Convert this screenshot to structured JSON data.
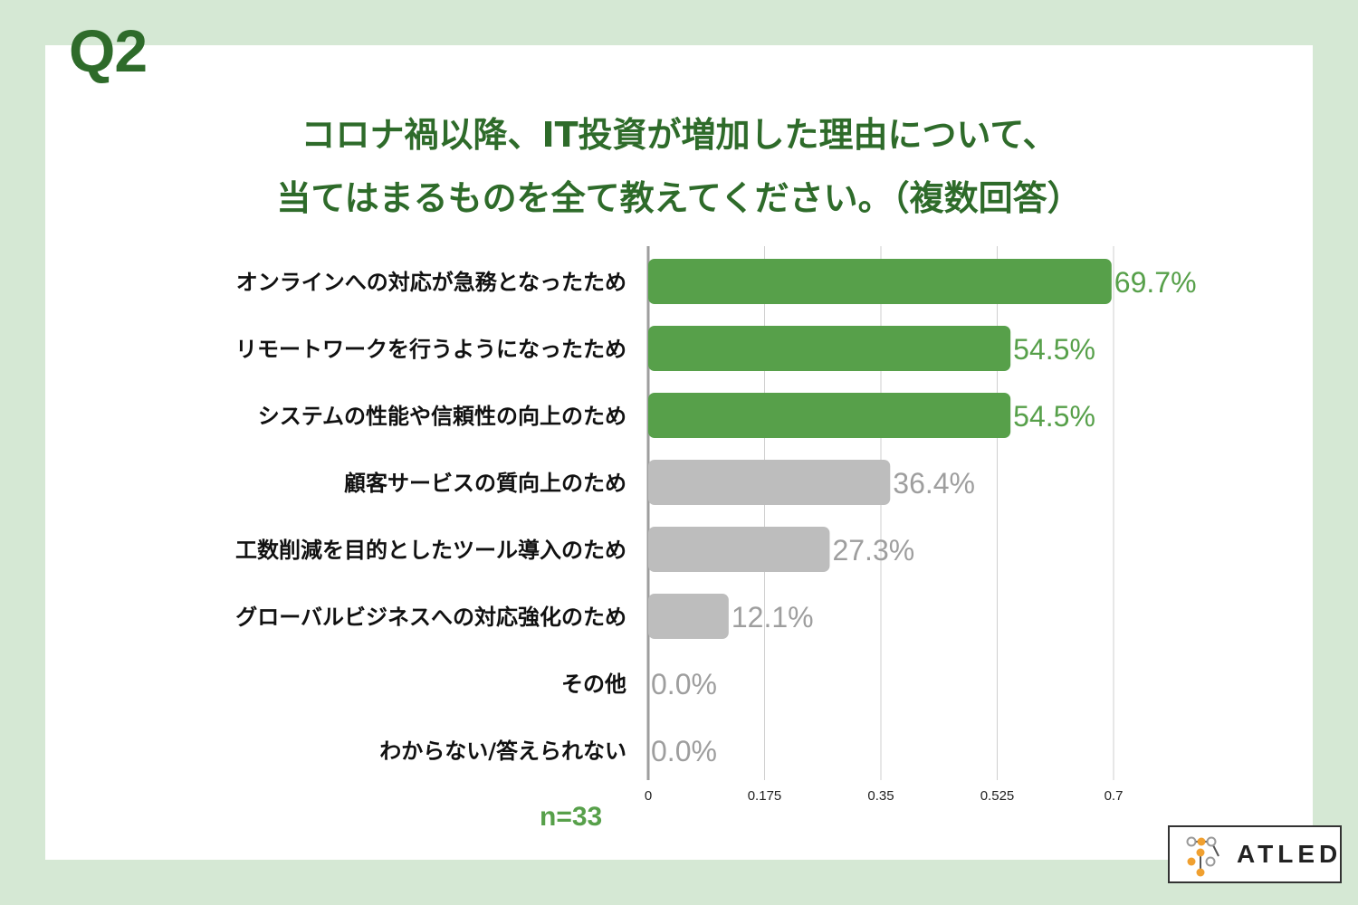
{
  "question_label": "Q2",
  "title_line1": "コロナ禍以降、IT投資が増加した理由について、",
  "title_line2": "当てはまるものを全て教えてください。（複数回答）",
  "sample_note": "n=33",
  "logo_text": "ATLED",
  "colors": {
    "background": "#d5e8d4",
    "title": "#2e6b2a",
    "highlight_bar": "#57a04a",
    "other_bar": "#bdbdbd",
    "highlight_value": "#57a04a",
    "other_value": "#9e9e9e",
    "logo_orange": "#f0a030",
    "logo_gray": "#9a9a9a"
  },
  "chart_data": {
    "type": "bar",
    "orientation": "horizontal",
    "categories": [
      "オンラインへの対応が急務となったため",
      "リモートワークを行うようになったため",
      "システムの性能や信頼性の向上のため",
      "顧客サービスの質向上のため",
      "工数削減を目的としたツール導入のため",
      "グローバルビジネスへの対応強化のため",
      "その他",
      "わからない/答えられない"
    ],
    "values": [
      0.697,
      0.545,
      0.545,
      0.364,
      0.273,
      0.121,
      0.0,
      0.0
    ],
    "value_labels": [
      "69.7%",
      "54.5%",
      "54.5%",
      "36.4%",
      "27.3%",
      "12.1%",
      "0.0%",
      "0.0%"
    ],
    "highlighted": [
      true,
      true,
      true,
      false,
      false,
      false,
      false,
      false
    ],
    "x_ticks": [
      0,
      0.175,
      0.35,
      0.525,
      0.7
    ],
    "x_tick_labels": [
      "0",
      "0.175",
      "0.35",
      "0.525",
      "0.7"
    ],
    "xlim": [
      0,
      0.7
    ],
    "grid": true,
    "legend": "none"
  }
}
